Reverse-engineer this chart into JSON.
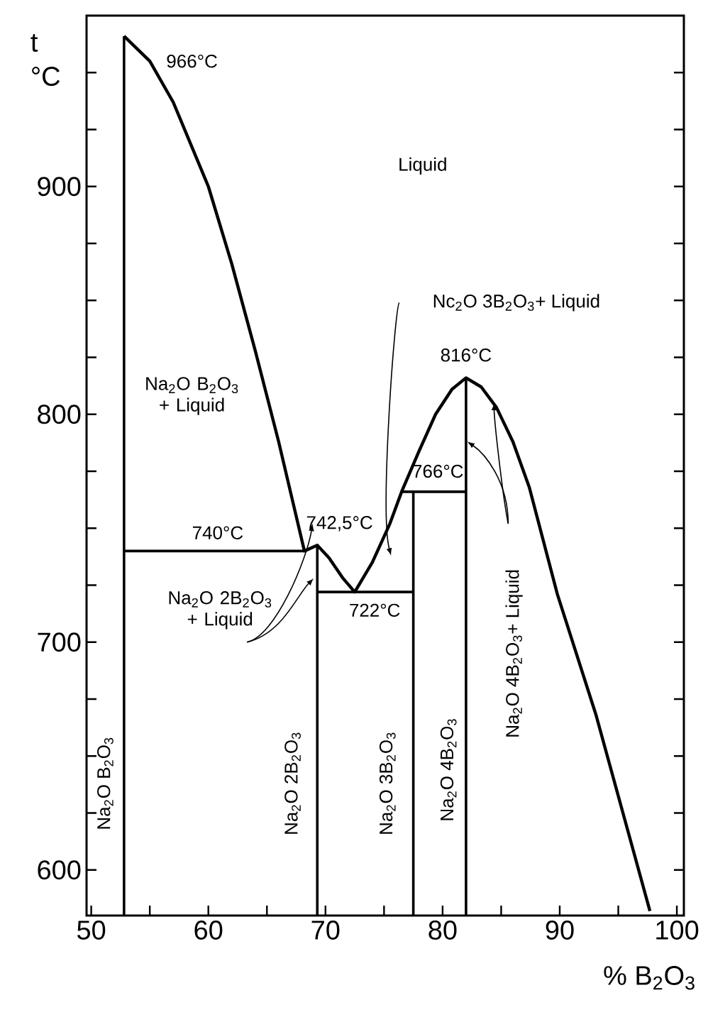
{
  "chart_data": {
    "type": "line",
    "xlabel": "% B$_{2}$O$_{3}$",
    "ylabel": "t °C",
    "marker": "none",
    "xlim": [
      49.6,
      100.6
    ],
    "ylim": [
      580,
      975
    ],
    "xticks": [
      50,
      {
        "value": 55,
        "label": null
      },
      60,
      {
        "value": 65,
        "label": null
      },
      70,
      {
        "value": 75,
        "label": null
      },
      80,
      {
        "value": 85,
        "label": null
      },
      90,
      {
        "value": 95,
        "label": null
      },
      100
    ],
    "yticks": [
      {
        "value": 600,
        "label": "600"
      },
      {
        "value": 625,
        "label": null
      },
      {
        "value": 650,
        "label": null
      },
      {
        "value": 675,
        "label": null
      },
      700,
      {
        "value": 725,
        "label": null
      },
      {
        "value": 750,
        "label": null
      },
      {
        "value": 775,
        "label": null
      },
      800,
      {
        "value": 825,
        "label": null
      },
      {
        "value": 850,
        "label": null
      },
      {
        "value": 875,
        "label": null
      },
      900,
      {
        "value": 925,
        "label": null
      },
      {
        "value": 950,
        "label": null
      }
    ],
    "series": [
      {
        "color": "#000000",
        "x": [
          52.8,
          55,
          57,
          60,
          62,
          64,
          66,
          68.2,
          69.3,
          70.3,
          71.5,
          72.5,
          74,
          75.5,
          76.5,
          78,
          79.4,
          80.8,
          82,
          83.3,
          84.6,
          86,
          87.4,
          89.8,
          93.1,
          97.7
        ],
        "values": [
          966,
          955,
          937,
          900,
          866,
          828,
          788,
          740,
          742.5,
          737,
          728,
          722,
          735,
          752,
          766,
          784,
          800,
          811,
          816,
          812,
          803,
          788,
          768,
          721,
          668,
          582
        ]
      },
      {
        "color": "#000000",
        "x": [
          52.8,
          52.8
        ],
        "values": [
          580,
          966
        ]
      },
      {
        "color": "#000000",
        "x": [
          52.8,
          68.2
        ],
        "values": [
          740,
          740
        ]
      },
      {
        "color": "#000000",
        "x": [
          69.3,
          69.3
        ],
        "values": [
          580,
          742.5
        ]
      },
      {
        "color": "#000000",
        "x": [
          69.3,
          77.5
        ],
        "values": [
          722,
          722
        ]
      },
      {
        "color": "#000000",
        "x": [
          77.5,
          77.5
        ],
        "values": [
          580,
          766
        ]
      },
      {
        "color": "#000000",
        "x": [
          76.5,
          82
        ],
        "values": [
          766,
          766
        ]
      },
      {
        "color": "#000000",
        "x": [
          82,
          82
        ],
        "values": [
          580,
          816
        ]
      }
    ],
    "annotations": [
      "966°C",
      "Liquid",
      "Na$_{2}$O B$_{2}$O$_{3}$ + Liquid",
      "740°C",
      "742,5°C",
      "722°C",
      "766°C",
      "816°C",
      "Nc$_{2}$O 3B$_{2}$O$_{3}$+ Liquid",
      "Na$_{2}$O 2B$_{2}$O$_{3}$ + Liquid",
      "Na$_{2}$O B$_{2}$O$_{3}$",
      "Na$_{2}$O 2B$_{2}$O$_{3}$",
      "Na$_{2}$O 3B$_{2}$O$_{3}$",
      "Na$_{2}$O 4B$_{2}$O$_{3}$",
      "Na$_{2}$O 4B$_{2}$O$_{3}$+ Liquid"
    ]
  }
}
